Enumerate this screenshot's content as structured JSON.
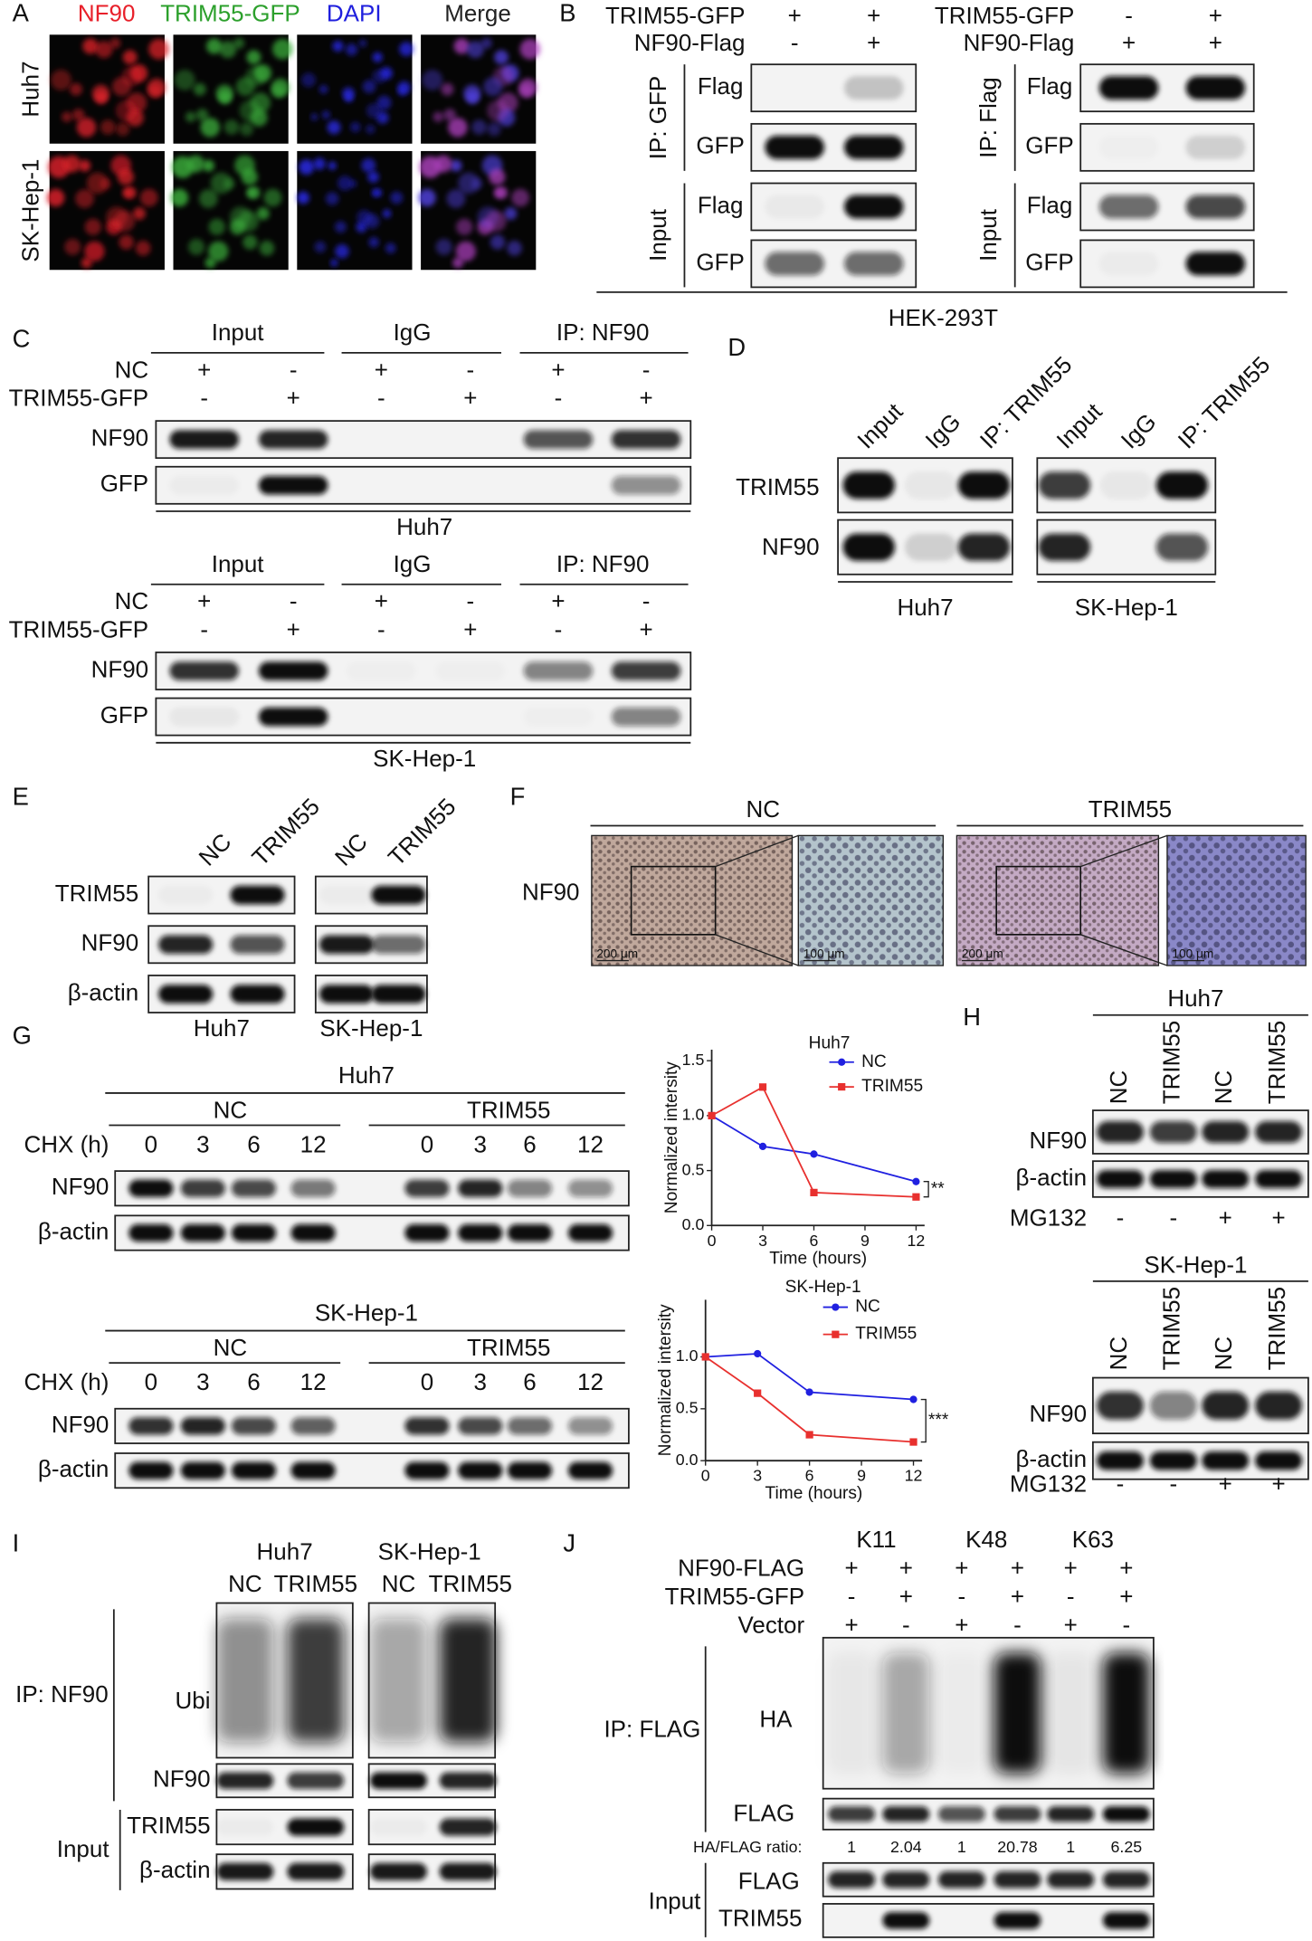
{
  "panel_labels": [
    "A",
    "B",
    "C",
    "D",
    "E",
    "F",
    "G",
    "H",
    "I",
    "J"
  ],
  "panel_a": {
    "columns": [
      "NF90",
      "TRIM55-GFP",
      "DAPI",
      "Merge"
    ],
    "rows": [
      "Huh7",
      "SK-Hep-1"
    ]
  },
  "panel_b": {
    "left": {
      "conditions": [
        {
          "label": "TRIM55-GFP",
          "signs": [
            "+",
            "+"
          ]
        },
        {
          "label": "NF90-Flag",
          "signs": [
            "-",
            "+"
          ]
        }
      ],
      "groups": [
        {
          "label": "IP: GFP",
          "blots": [
            "Flag",
            "GFP"
          ]
        },
        {
          "label": "Input",
          "blots": [
            "Flag",
            "GFP"
          ]
        }
      ]
    },
    "right": {
      "conditions": [
        {
          "label": "TRIM55-GFP",
          "signs": [
            "-",
            "+"
          ]
        },
        {
          "label": "NF90-Flag",
          "signs": [
            "+",
            "+"
          ]
        }
      ],
      "groups": [
        {
          "label": "IP: Flag",
          "blots": [
            "Flag",
            "GFP"
          ]
        },
        {
          "label": "Input",
          "blots": [
            "Flag",
            "GFP"
          ]
        }
      ]
    },
    "cell_line": "HEK-293T"
  },
  "panel_c": {
    "blocks": [
      {
        "headers": [
          "Input",
          "IgG",
          "IP: NF90"
        ],
        "conditions": [
          {
            "label": "NC",
            "signs": [
              "+",
              "-",
              "+",
              "-",
              "+",
              "-"
            ]
          },
          {
            "label": "TRIM55-GFP",
            "signs": [
              "-",
              "+",
              "-",
              "+",
              "-",
              "+"
            ]
          }
        ],
        "blots": [
          "NF90",
          "GFP"
        ],
        "cell_line": "Huh7"
      },
      {
        "headers": [
          "Input",
          "IgG",
          "IP: NF90"
        ],
        "conditions": [
          {
            "label": "NC",
            "signs": [
              "+",
              "-",
              "+",
              "-",
              "+",
              "-"
            ]
          },
          {
            "label": "TRIM55-GFP",
            "signs": [
              "-",
              "+",
              "-",
              "+",
              "-",
              "+"
            ]
          }
        ],
        "blots": [
          "NF90",
          "GFP"
        ],
        "cell_line": "SK-Hep-1"
      }
    ]
  },
  "panel_d": {
    "blocks": [
      {
        "lanes": [
          "Input",
          "IgG",
          "IP: TRIM55"
        ],
        "cell_line": "Huh7"
      },
      {
        "lanes": [
          "Input",
          "IgG",
          "IP: TRIM55"
        ],
        "cell_line": "SK-Hep-1"
      }
    ],
    "blots": [
      "TRIM55",
      "NF90"
    ]
  },
  "panel_e": {
    "blocks": [
      {
        "lanes": [
          "NC",
          "TRIM55"
        ],
        "cell_line": "Huh7"
      },
      {
        "lanes": [
          "NC",
          "TRIM55"
        ],
        "cell_line": "SK-Hep-1"
      }
    ],
    "blots": [
      "TRIM55",
      "NF90",
      "β-actin"
    ]
  },
  "panel_f": {
    "row_label": "NF90",
    "groups": [
      {
        "label": "NC",
        "scale_bars": [
          "200 μm",
          "100 μm"
        ]
      },
      {
        "label": "TRIM55",
        "scale_bars": [
          "200 μm",
          "100 μm"
        ]
      }
    ]
  },
  "panel_g": {
    "blocks": [
      {
        "title": "Huh7",
        "time_label": "CHX (h)",
        "groups": [
          {
            "label": "NC",
            "times": [
              "0",
              "3",
              "6",
              "12"
            ]
          },
          {
            "label": "TRIM55",
            "times": [
              "0",
              "3",
              "6",
              "12"
            ]
          }
        ],
        "blots": [
          "NF90",
          "β-actin"
        ]
      },
      {
        "title": "SK-Hep-1",
        "time_label": "CHX (h)",
        "groups": [
          {
            "label": "NC",
            "times": [
              "0",
              "3",
              "6",
              "12"
            ]
          },
          {
            "label": "TRIM55",
            "times": [
              "0",
              "3",
              "6",
              "12"
            ]
          }
        ],
        "blots": [
          "NF90",
          "β-actin"
        ]
      }
    ]
  },
  "chart_data": [
    {
      "type": "line",
      "title": "Huh7",
      "x_label": "Time (hours)",
      "y_label": "Normalized intersity",
      "x": [
        0,
        3,
        6,
        12
      ],
      "series": [
        {
          "name": "NC",
          "color": "#2020e0",
          "values": [
            1.0,
            0.72,
            0.65,
            0.4
          ]
        },
        {
          "name": "TRIM55",
          "color": "#e8302e",
          "values": [
            1.0,
            1.26,
            0.3,
            0.26
          ]
        }
      ],
      "xlim": [
        0,
        12.5
      ],
      "ylim": [
        0,
        1.6
      ],
      "xticks": [
        0,
        3,
        6,
        9,
        12
      ],
      "yticks": [
        {
          "value": 0,
          "label": "0.0"
        },
        {
          "value": 0.5,
          "label": "0.5"
        },
        {
          "value": 1,
          "label": "1.0"
        },
        {
          "value": 1.5,
          "label": "1.5"
        }
      ],
      "annotation": "**"
    },
    {
      "type": "line",
      "title": "SK-Hep-1",
      "x_label": "Time (hours)",
      "y_label": "Normalized intersity",
      "x": [
        0,
        3,
        6,
        12
      ],
      "series": [
        {
          "name": "NC",
          "color": "#2020e0",
          "values": [
            1.0,
            1.03,
            0.66,
            0.59
          ]
        },
        {
          "name": "TRIM55",
          "color": "#e8302e",
          "values": [
            1.0,
            0.65,
            0.25,
            0.18
          ]
        }
      ],
      "xlim": [
        0,
        12.5
      ],
      "ylim": [
        0,
        1.55
      ],
      "xticks": [
        0,
        3,
        6,
        9,
        12
      ],
      "yticks": [
        {
          "value": 0,
          "label": "0.0"
        },
        {
          "value": 0.5,
          "label": "0.5"
        },
        {
          "value": 1,
          "label": "1.0"
        }
      ],
      "annotation": "***"
    }
  ],
  "panel_h": {
    "blocks": [
      {
        "title": "Huh7",
        "lanes": [
          "NC",
          "TRIM55",
          "NC",
          "TRIM55"
        ],
        "blots": [
          "NF90",
          "β-actin"
        ],
        "treatment": {
          "label": "MG132",
          "signs": [
            "-",
            "-",
            "+",
            "+"
          ]
        }
      },
      {
        "title": "SK-Hep-1",
        "lanes": [
          "NC",
          "TRIM55",
          "NC",
          "TRIM55"
        ],
        "blots": [
          "NF90",
          "β-actin"
        ],
        "treatment": {
          "label": "MG132",
          "signs": [
            "-",
            "-",
            "+",
            "+"
          ]
        }
      }
    ]
  },
  "panel_i": {
    "blocks": [
      {
        "title": "Huh7",
        "lanes": [
          "NC",
          "TRIM55"
        ]
      },
      {
        "title": "SK-Hep-1",
        "lanes": [
          "NC",
          "TRIM55"
        ]
      }
    ],
    "groups": [
      {
        "label": "IP: NF90",
        "blots": [
          "Ubi",
          "NF90"
        ]
      },
      {
        "label": "Input",
        "blots": [
          "TRIM55",
          "β-actin"
        ]
      }
    ]
  },
  "panel_j": {
    "linkages": [
      "K11",
      "K48",
      "K63"
    ],
    "conditions": [
      {
        "label": "NF90-FLAG",
        "signs": [
          "+",
          "+",
          "+",
          "+",
          "+",
          "+"
        ]
      },
      {
        "label": "TRIM55-GFP",
        "signs": [
          "-",
          "+",
          "-",
          "+",
          "-",
          "+"
        ]
      },
      {
        "label": "Vector",
        "signs": [
          "+",
          "-",
          "+",
          "-",
          "+",
          "-"
        ]
      }
    ],
    "groups": [
      {
        "label": "IP: FLAG",
        "blots": [
          "HA",
          "FLAG"
        ]
      },
      {
        "label": "Input",
        "blots": [
          "FLAG",
          "TRIM55"
        ]
      }
    ],
    "ratio": {
      "label": "HA/FLAG ratio:",
      "values": [
        1,
        2.04,
        1,
        20.78,
        1,
        6.25
      ]
    }
  }
}
